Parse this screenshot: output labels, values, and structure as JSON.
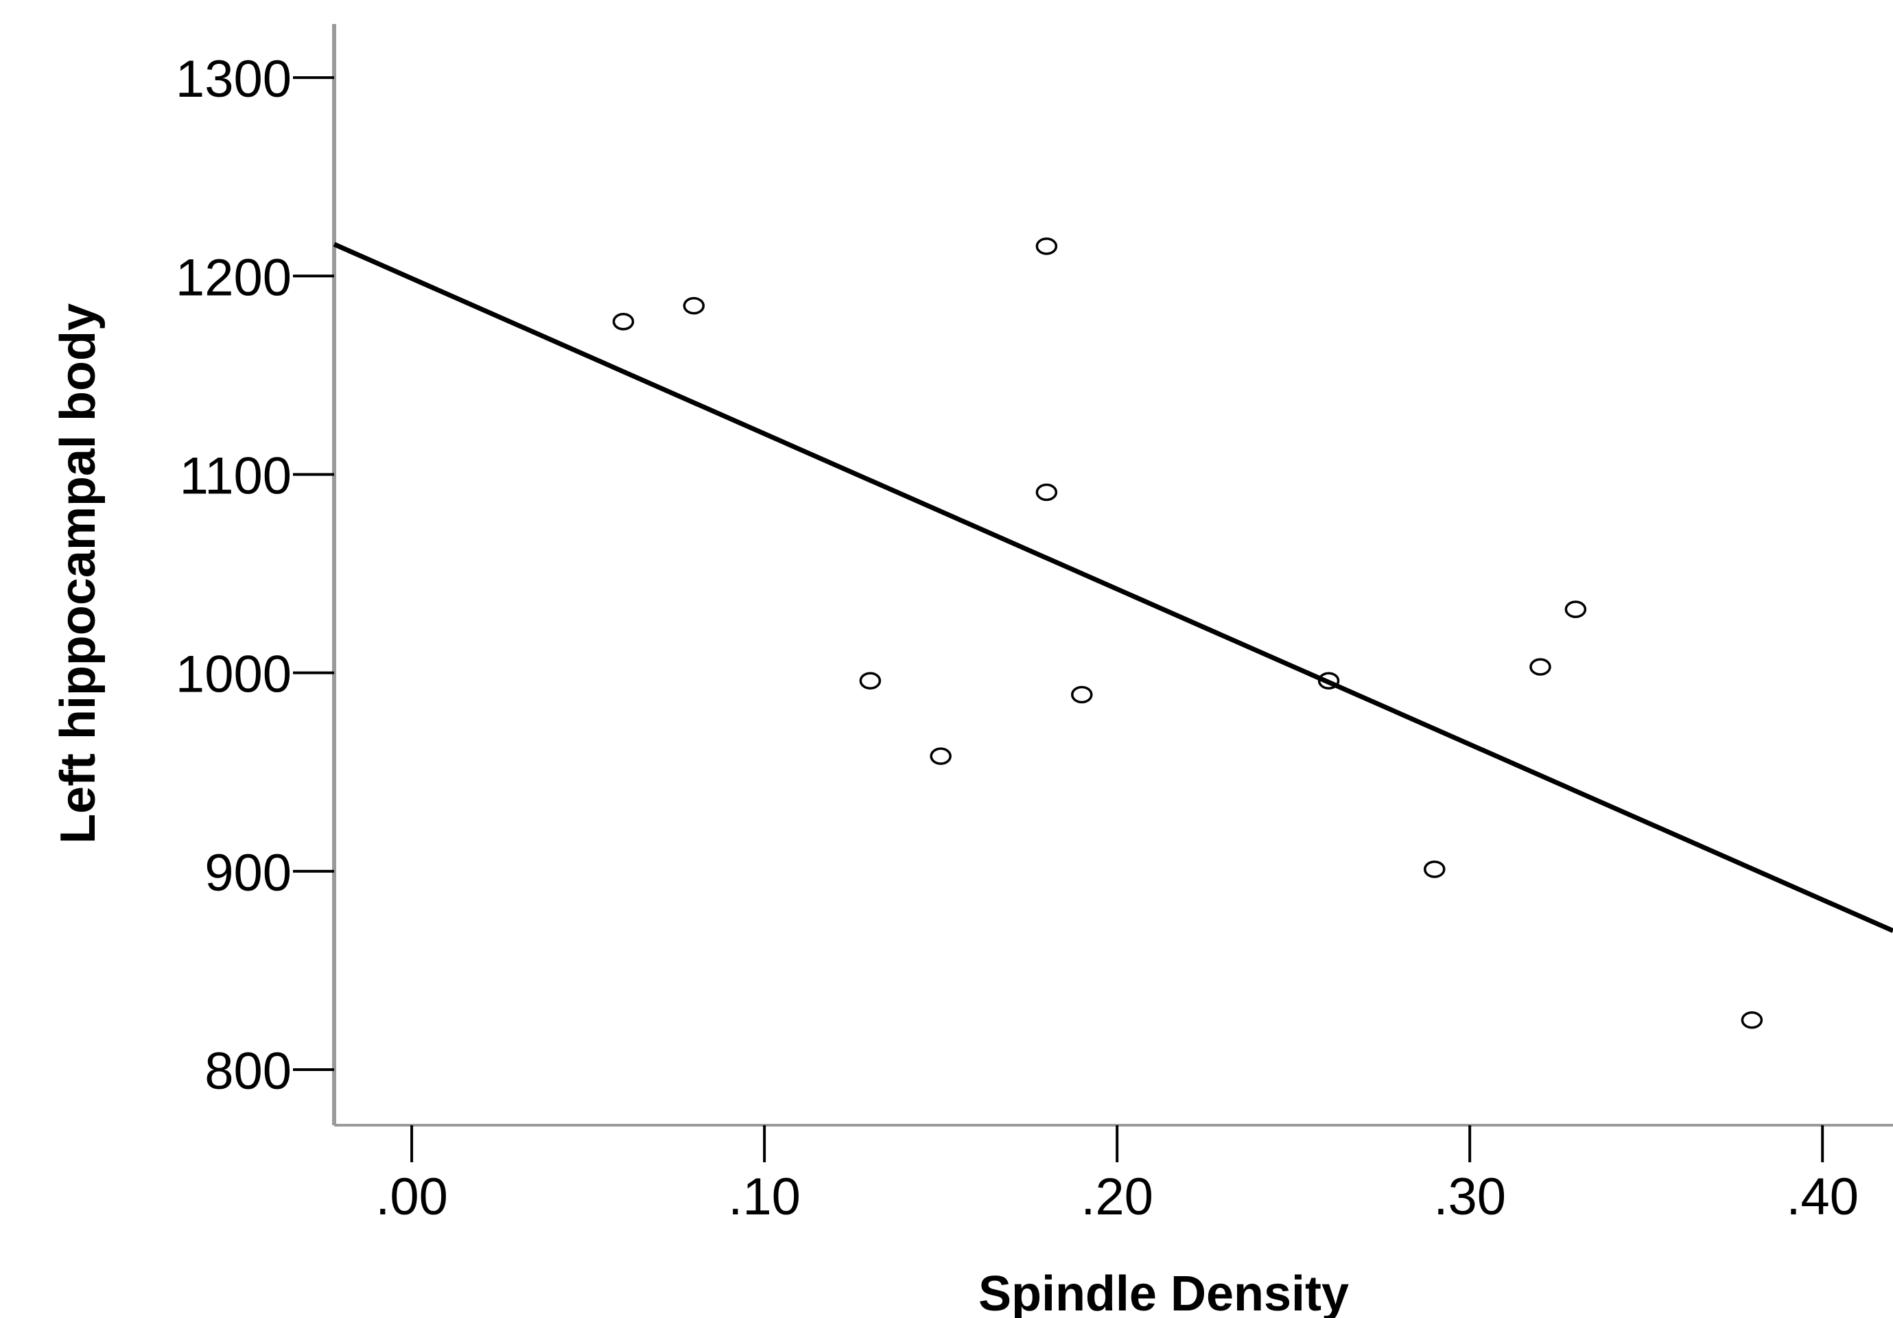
{
  "chart_data": {
    "type": "scatter",
    "title": "",
    "xlabel": "Spindle Density",
    "ylabel": "Left hippocampal body",
    "xlim": [
      -0.022,
      0.42
    ],
    "ylim": [
      772,
      1327
    ],
    "x_ticks": [
      0.0,
      0.1,
      0.2,
      0.3,
      0.4
    ],
    "x_tick_labels": [
      ".00",
      ".10",
      ".20",
      ".30",
      ".40"
    ],
    "y_ticks": [
      800,
      900,
      1000,
      1100,
      1200,
      1300
    ],
    "y_tick_labels": [
      "800",
      "900",
      "1000",
      "1100",
      "1200",
      "1300"
    ],
    "grid": false,
    "legend": "none",
    "points": [
      {
        "x": 0.06,
        "y": 1177
      },
      {
        "x": 0.08,
        "y": 1185
      },
      {
        "x": 0.13,
        "y": 996
      },
      {
        "x": 0.15,
        "y": 958
      },
      {
        "x": 0.18,
        "y": 1215
      },
      {
        "x": 0.18,
        "y": 1091
      },
      {
        "x": 0.19,
        "y": 989
      },
      {
        "x": 0.26,
        "y": 996
      },
      {
        "x": 0.29,
        "y": 901
      },
      {
        "x": 0.32,
        "y": 1003
      },
      {
        "x": 0.33,
        "y": 1032
      },
      {
        "x": 0.38,
        "y": 825
      }
    ],
    "fit_line": {
      "x": [
        -0.022,
        0.42
      ],
      "y": [
        1216,
        870
      ]
    },
    "colors": {
      "axis": "#9a9a9a",
      "marks": "#000000"
    }
  }
}
